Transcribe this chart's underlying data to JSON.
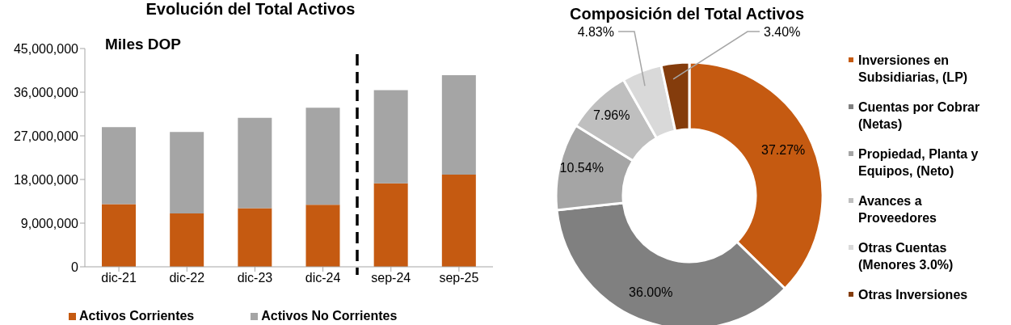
{
  "chart_data": [
    {
      "type": "bar",
      "title": "Evolución del Total Activos",
      "stacked": true,
      "categories": [
        "dic-21",
        "dic-22",
        "dic-23",
        "dic-24",
        "sep-24",
        "sep-25"
      ],
      "series": [
        {
          "name": "Activos Corrientes",
          "color": "#c55a11",
          "values": [
            12900000,
            11000000,
            12100000,
            12800000,
            17200000,
            19000000
          ]
        },
        {
          "name": "Activos No Corrientes",
          "color": "#a5a5a5",
          "values": [
            15900000,
            16800000,
            18600000,
            20000000,
            19200000,
            20500000
          ]
        }
      ],
      "ylim": [
        0,
        45000000
      ],
      "yticks": [
        {
          "value": 0,
          "label": "0"
        },
        {
          "value": 9000000,
          "label": "9,000,000"
        },
        {
          "value": 18000000,
          "label": "18,000,000"
        },
        {
          "value": 27000000,
          "label": "27,000,000"
        },
        {
          "value": 36000000,
          "label": "36,000,000"
        },
        {
          "value": 45000000,
          "label": "45,000,000"
        }
      ],
      "annotations": [
        "Miles DOP"
      ],
      "grid": false,
      "legend": "bottom"
    },
    {
      "type": "donut",
      "title": "Composición del Total Activos",
      "categories": [
        "Inversiones en Subsidiarias, (LP)",
        "Cuentas por Cobrar (Netas)",
        "Propiedad, Planta y Equipos, (Neto)",
        "Avances a Proveedores",
        "Otras Cuentas (Menores 3.0%)",
        "Otras Inversiones"
      ],
      "values": [
        37.27,
        36.0,
        10.54,
        7.96,
        4.83,
        3.4
      ],
      "value_labels": [
        "37.27%",
        "36.00%",
        "10.54%",
        "7.96%",
        "4.83%",
        "3.40%"
      ],
      "colors": [
        "#c55a11",
        "#808080",
        "#a5a5a5",
        "#bfbfbf",
        "#d9d9d9",
        "#843c0c"
      ],
      "legend": "right"
    }
  ]
}
